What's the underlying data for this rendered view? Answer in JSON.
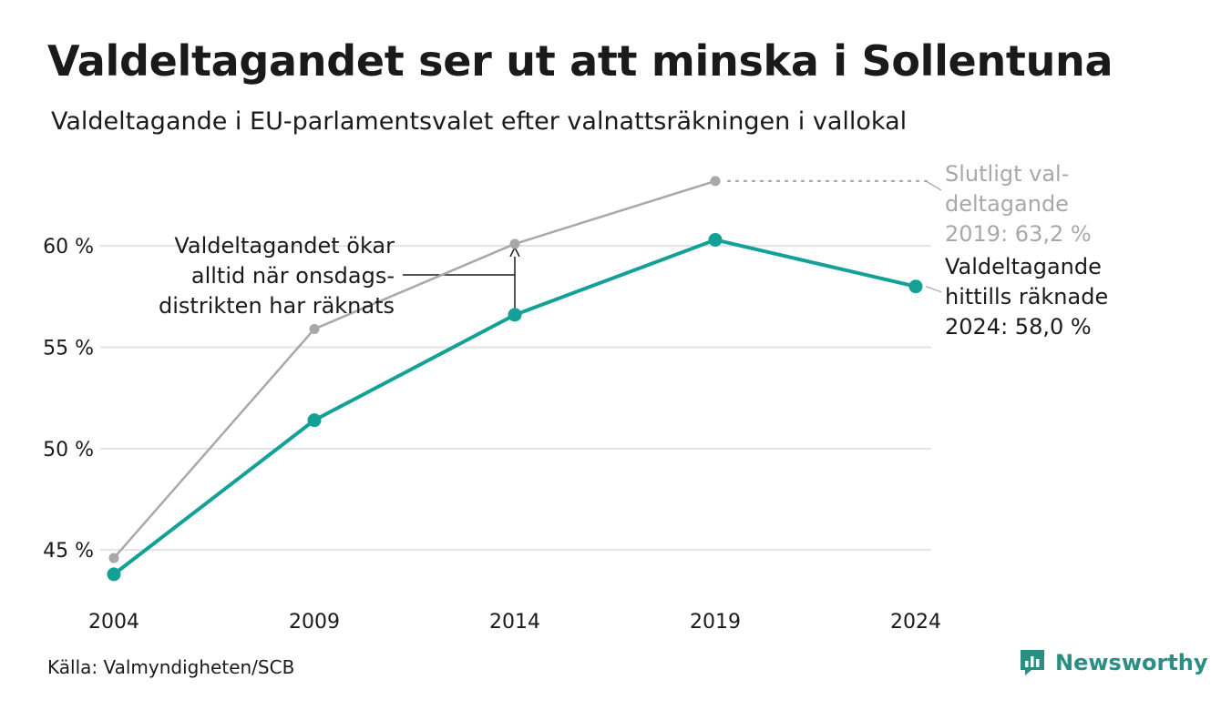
{
  "title": "Valdeltagandet ser ut att minska i Sollentuna",
  "subtitle": "Valdeltagande i EU-parlamentsvalet efter valnattsräkningen i vallokal",
  "source": "Källa: Valmyndigheten/SCB",
  "brand": {
    "name": "Newsworthy",
    "icon": "newsworthy-logo-icon",
    "color": "#2a8f82"
  },
  "colors": {
    "counted": "#13a096",
    "final": "#a8a8a8",
    "grid": "#e3e3e3",
    "text": "#1a1a1a"
  },
  "chart_data": {
    "type": "line",
    "x": [
      2004,
      2009,
      2014,
      2019,
      2024
    ],
    "x_tick_labels": [
      "2004",
      "2009",
      "2014",
      "2019",
      "2024"
    ],
    "y_ticks": [
      45,
      50,
      55,
      60
    ],
    "y_tick_labels": [
      "45 %",
      "50 %",
      "55 %",
      "60 %"
    ],
    "ylim": [
      43.3,
      63.6
    ],
    "grid": true,
    "series": [
      {
        "key": "final",
        "values": [
          44.6,
          55.9,
          60.1,
          63.2,
          null
        ]
      },
      {
        "key": "counted",
        "values": [
          43.8,
          51.4,
          56.6,
          60.3,
          58.0
        ]
      }
    ],
    "annotations": {
      "gap": {
        "lines": [
          "Valdeltagandet ökar",
          "alltid när onsdags-",
          "distrikten har räknats"
        ]
      },
      "final_label": {
        "lines": [
          "Slutligt val-",
          "deltagande",
          "2019: 63,2 %"
        ]
      },
      "counted_label": {
        "lines": [
          "Valdeltagande",
          "hittills räknade",
          "2024: 58,0 %"
        ]
      }
    }
  }
}
